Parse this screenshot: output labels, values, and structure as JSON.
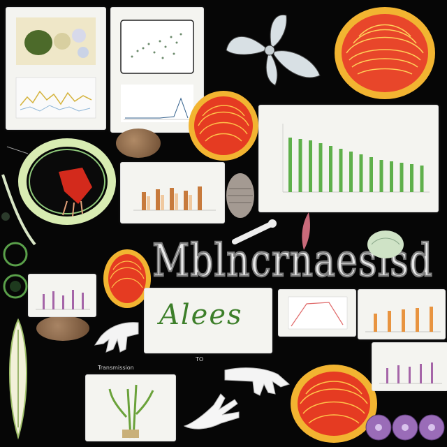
{
  "main_title": "Mblncrnaesisd",
  "logo_word": "Alees",
  "caption_left": "Transmission",
  "caption_center": "TO"
}
